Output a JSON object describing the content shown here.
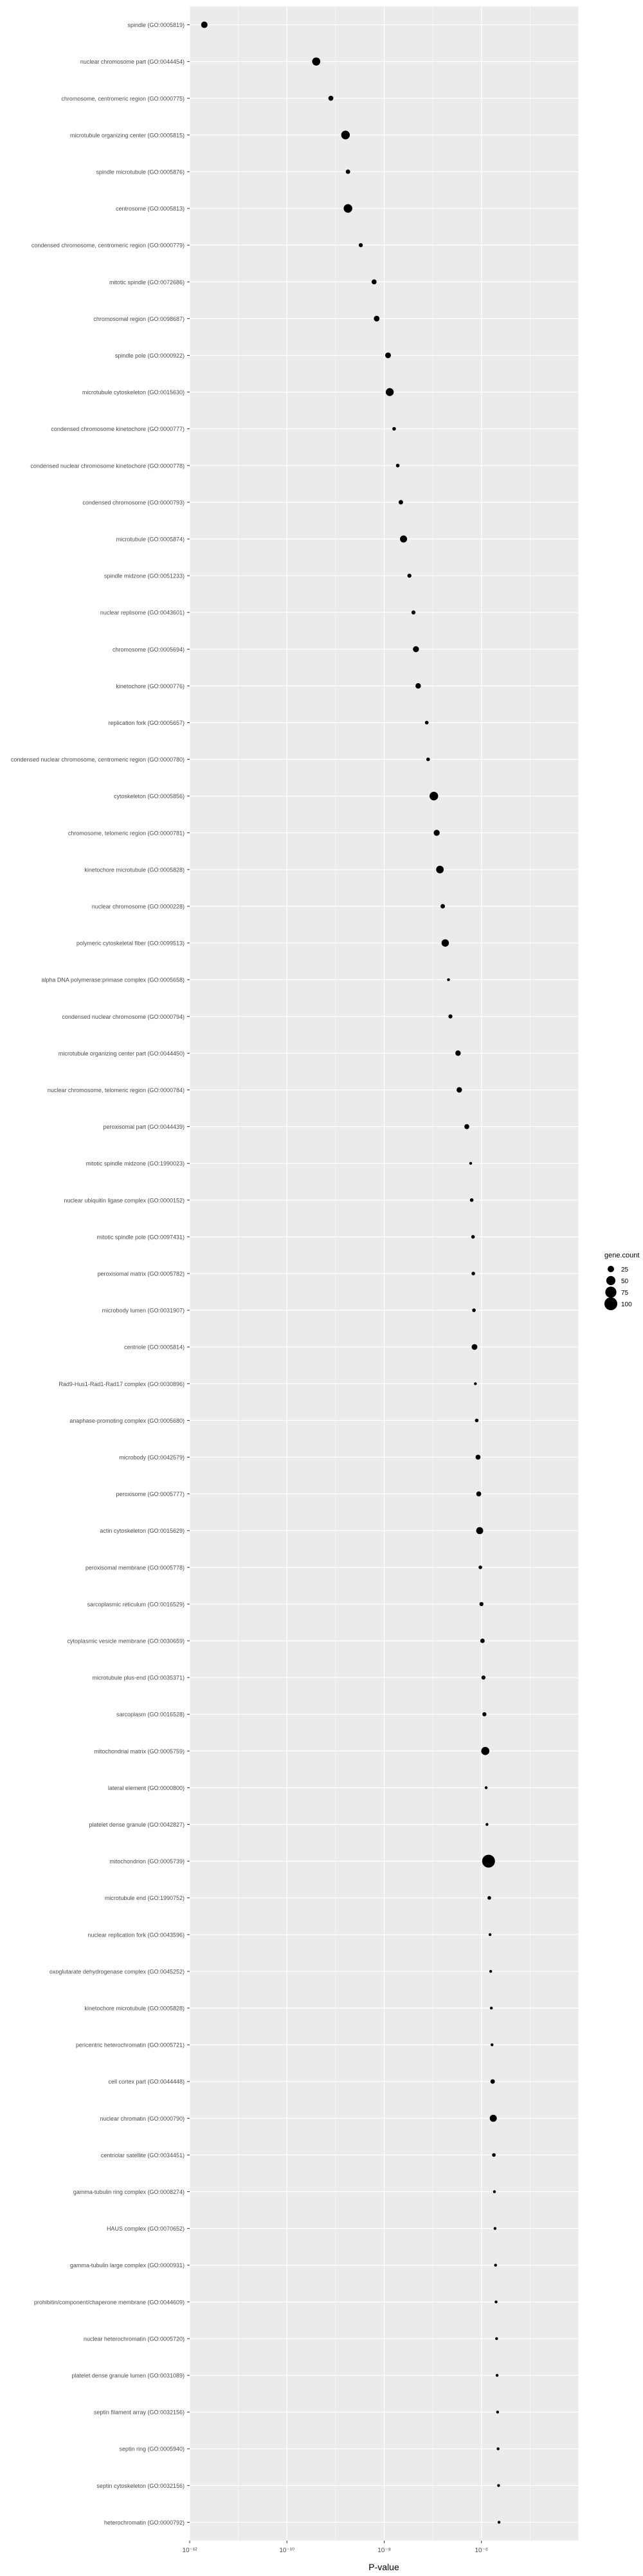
{
  "chart_data": {
    "type": "scatter",
    "title": "",
    "xlabel": "P-value",
    "ylabel": "",
    "x_scale": "log10",
    "xlim": [
      1e-12,
      0.0001
    ],
    "x_ticks": [
      {
        "value": 1e-12,
        "label": "10⁻¹²"
      },
      {
        "value": 1e-10,
        "label": "10⁻¹⁰"
      },
      {
        "value": 1e-08,
        "label": "10⁻⁸"
      },
      {
        "value": 1e-06,
        "label": "10⁻⁶"
      }
    ],
    "grid": true,
    "legend": {
      "title": "gene.count",
      "position": "right",
      "entries": [
        {
          "label": "25",
          "value": 25
        },
        {
          "label": "50",
          "value": 50
        },
        {
          "label": "75",
          "value": 75
        },
        {
          "label": "100",
          "value": 100
        }
      ]
    },
    "categories": [
      "spindle (GO:0005819)",
      "nuclear chromosome part (GO:0044454)",
      "chromosome, centromeric region (GO:0000775)",
      "microtubule organizing center (GO:0005815)",
      "spindle microtubule (GO:0005876)",
      "centrosome (GO:0005813)",
      "condensed chromosome, centromeric region (GO:0000779)",
      "mitotic spindle (GO:0072686)",
      "chromosomal region (GO:0098687)",
      "spindle pole (GO:0000922)",
      "microtubule cytoskeleton (GO:0015630)",
      "condensed chromosome kinetochore (GO:0000777)",
      "condensed nuclear chromosome kinetochore (GO:0000778)",
      "condensed chromosome (GO:0000793)",
      "microtubule (GO:0005874)",
      "spindle midzone (GO:0051233)",
      "nuclear replisome (GO:0043601)",
      "chromosome (GO:0005694)",
      "kinetochore (GO:0000776)",
      "replication fork (GO:0005657)",
      "condensed nuclear chromosome, centromeric region (GO:0000780)",
      "cytoskeleton (GO:0005856)",
      "chromosome, telomeric region (GO:0000781)",
      "kinetochore microtubule (GO:0005828)",
      "nuclear chromosome (GO:0000228)",
      "polymeric cytoskeletal fiber (GO:0099513)",
      "alpha DNA polymerase:primase complex (GO:0005658)",
      "condensed nuclear chromosome (GO:0000794)",
      "microtubule organizing center part (GO:0044450)",
      "nuclear chromosome, telomeric region (GO:0000784)",
      "peroxisomal part (GO:0044439)",
      "mitotic spindle midzone (GO:1990023)",
      "nuclear ubiquitin ligase complex (GO:0000152)",
      "mitotic spindle pole (GO:0097431)",
      "peroxisomal matrix (GO:0005782)",
      "microbody lumen (GO:0031907)",
      "centriole (GO:0005814)",
      "Rad9-Hus1-Rad1-Rad17 complex (GO:0030896)",
      "anaphase-promoting complex (GO:0005680)",
      "microbody (GO:0042579)",
      "peroxisome (GO:0005777)",
      "actin cytoskeleton (GO:0015629)",
      "peroxisomal membrane (GO:0005778)",
      "sarcoplasmic reticulum (GO:0016529)",
      "cytoplasmic vesicle membrane (GO:0030659)",
      "microtubule plus-end (GO:0035371)",
      "sarcoplasm (GO:0016528)",
      "mitochondrial matrix (GO:0005759)",
      "lateral element (GO:0000800)",
      "platelet dense granule (GO:0042827)",
      "mitochondrion (GO:0005739)",
      "microtubule end (GO:1990752)",
      "nuclear replication fork (GO:0043596)",
      "oxoglutarate dehydrogenase complex (GO:0045252)",
      "kinetochore microtubule (GO:0005828)",
      "pericentric heterochromatin (GO:0005721)",
      "cell cortex part (GO:0044448)",
      "nuclear chromatin (GO:0000790)",
      "centriolar satellite (GO:0034451)",
      "gamma-tubulin ring complex (GO:0008274)",
      "HAUS complex (GO:0070652)",
      "gamma-tubulin large complex (GO:0000931)",
      "prohibitin/component/chaperone membrane (GO:0044609)",
      "nuclear heterochromatin (GO:0005720)",
      "platelet dense granule lumen (GO:0031089)",
      "septin filament array (GO:0032156)",
      "septin ring (GO:0005940)",
      "septin cytoskeleton (GO:0032156)",
      "heterochromatin (GO:0000792)"
    ],
    "series": [
      {
        "x": [
          2e-12,
          4e-10,
          8e-10,
          1.6e-09,
          1.8e-09,
          1.8e-09,
          3.3e-09,
          6.2e-09,
          7e-09,
          1.2e-08,
          1.3e-08,
          1.6e-08,
          1.9e-08,
          2.2e-08,
          2.5e-08,
          3.3e-08,
          4e-08,
          4.5e-08,
          5e-08,
          7.5e-08,
          8e-08,
          1.05e-07,
          1.2e-07,
          1.4e-07,
          1.6e-07,
          1.8e-07,
          2.1e-07,
          2.3e-07,
          3.3e-07,
          3.5e-07,
          5e-07,
          6e-07,
          6.3e-07,
          6.7e-07,
          6.8e-07,
          7e-07,
          7.2e-07,
          7.5e-07,
          8e-07,
          8.5e-07,
          8.8e-07,
          9.2e-07,
          9.5e-07,
          1e-06,
          1.05e-06,
          1.1e-06,
          1.15e-06,
          1.2e-06,
          1.25e-06,
          1.3e-06,
          1.4e-06,
          1.45e-06,
          1.5e-06,
          1.55e-06,
          1.6e-06,
          1.65e-06,
          1.7e-06,
          1.75e-06,
          1.8e-06,
          1.85e-06,
          1.9e-06,
          1.95e-06,
          2e-06,
          2.05e-06,
          2.1e-06,
          2.15e-06,
          2.2e-06,
          2.25e-06,
          2.3e-06
        ],
        "gene_count": [
          25,
          40,
          15,
          45,
          12,
          45,
          10,
          15,
          20,
          20,
          38,
          8,
          8,
          12,
          30,
          10,
          10,
          22,
          18,
          8,
          8,
          45,
          22,
          35,
          12,
          33,
          5,
          10,
          18,
          18,
          15,
          5,
          8,
          8,
          8,
          8,
          20,
          5,
          8,
          15,
          15,
          30,
          8,
          10,
          12,
          10,
          10,
          40,
          5,
          5,
          100,
          8,
          5,
          5,
          5,
          5,
          12,
          30,
          8,
          5,
          5,
          5,
          5,
          5,
          5,
          5,
          5,
          5,
          5
        ]
      }
    ]
  }
}
